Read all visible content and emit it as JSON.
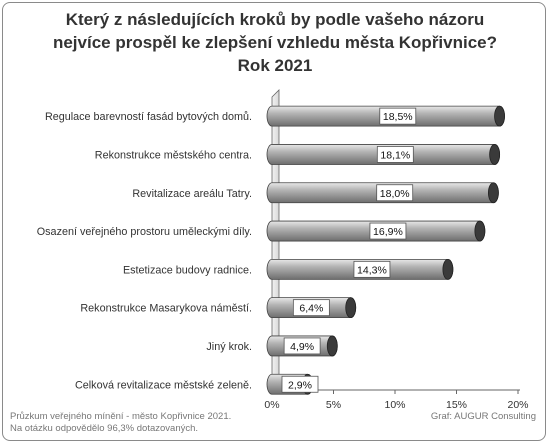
{
  "title": {
    "line1": "Který z následujících kroků by podle vašeho názoru",
    "line2": "nejvíce prospěl ke zlepšení vzhledu města Kopřivnice?",
    "line3": "Rok 2021"
  },
  "footnote": {
    "line1": "Průzkum veřejného mínění - město Kopřivnice 2021.",
    "line2": "Na otázku odpovědělo 96,3% dotazovaných."
  },
  "source": "Graf: AUGUR Consulting",
  "colors": {
    "bar_light": "#e8e8e8",
    "bar_mid": "#b5b5b5",
    "bar_dark": "#6e6e6e",
    "cap": "#3a3a3a",
    "axis": "#666666",
    "text": "#333333"
  },
  "chart_data": {
    "type": "bar",
    "orientation": "horizontal",
    "categories": [
      "Regulace barevností fasád bytových domů.",
      "Rekonstrukce městského centra.",
      "Revitalizace areálu Tatry.",
      "Osazení veřejného prostoru uměleckými díly.",
      "Estetizace budovy radnice.",
      "Rekonstrukce Masarykova náměstí.",
      "Jiný krok.",
      "Celková revitalizace městské zeleně."
    ],
    "values": [
      18.5,
      18.1,
      18.0,
      16.9,
      14.3,
      6.4,
      4.9,
      2.9
    ],
    "value_labels": [
      "18,5%",
      "18,1%",
      "18,0%",
      "16,9%",
      "14,3%",
      "6,4%",
      "4,9%",
      "2,9%"
    ],
    "xlim": [
      0,
      20
    ],
    "xticks": [
      "0%",
      "5%",
      "10%",
      "15%",
      "20%"
    ],
    "xtick_values": [
      0,
      5,
      10,
      15,
      20
    ],
    "grid": false,
    "legend": "none"
  }
}
